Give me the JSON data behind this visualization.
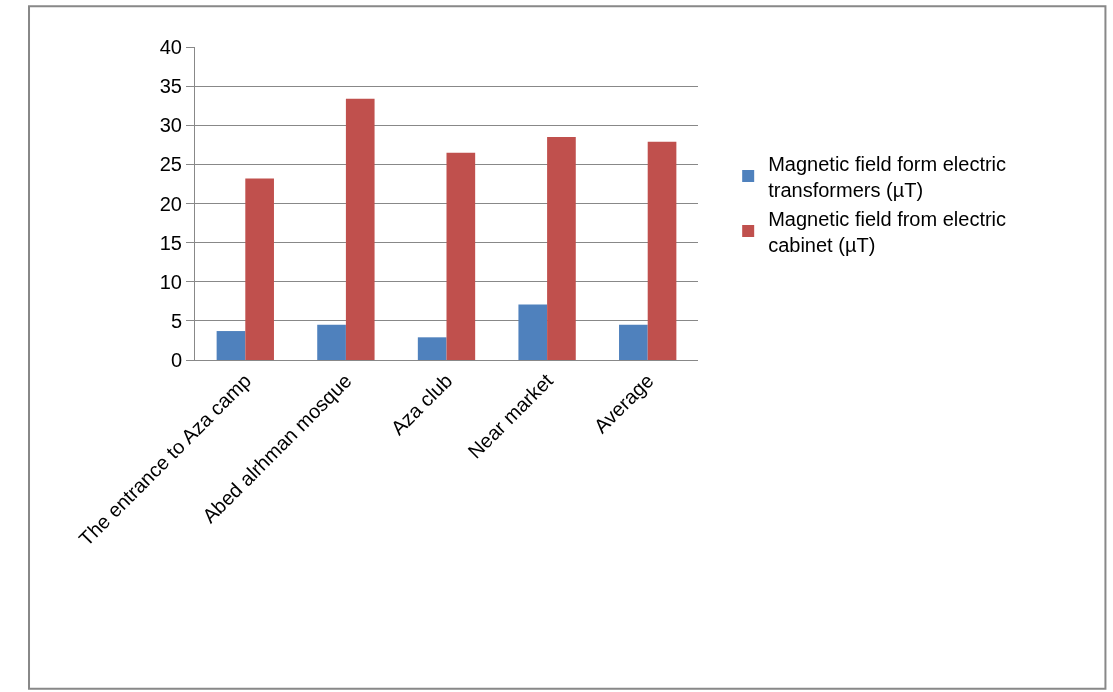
{
  "chart_data": {
    "type": "bar",
    "categories": [
      "The entrance to Aza camp",
      "Abed alrhman mosque",
      "Aza club",
      "Near market",
      "Average"
    ],
    "series": [
      {
        "name": "Magnetic field form electric transformers (µT)",
        "color": "#4f81bd",
        "values": [
          3.7,
          4.5,
          2.9,
          7.1,
          4.5
        ]
      },
      {
        "name": "Magnetic field from electric cabinet (µT)",
        "color": "#c0504d",
        "values": [
          23.2,
          33.4,
          26.5,
          28.5,
          27.9
        ]
      }
    ],
    "ylim": [
      0,
      40
    ],
    "yticks": [
      0,
      5,
      10,
      15,
      20,
      25,
      30,
      35,
      40
    ],
    "grid": "y",
    "legend": "right"
  }
}
